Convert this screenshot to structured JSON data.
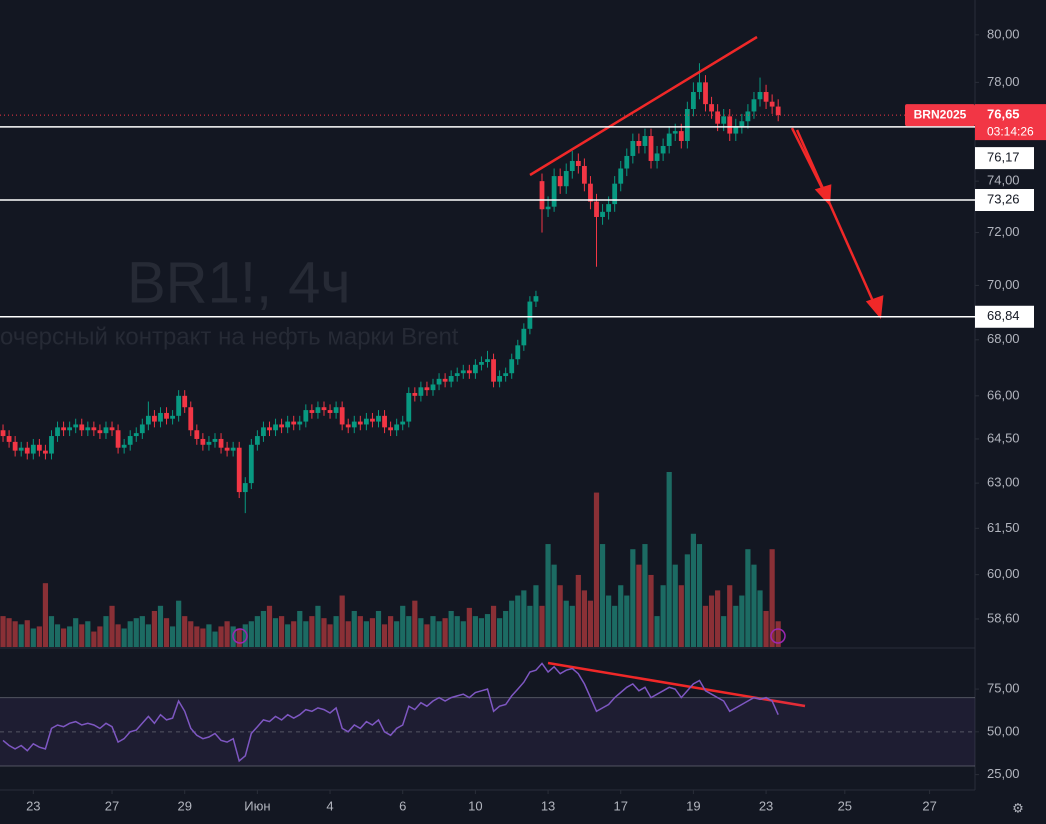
{
  "chart_data": [
    {
      "type": "candlestick",
      "title": "BR1!, 4ч",
      "subtitle": "очерсный контракт на нефть марки Brent",
      "symbol": "BRN2025",
      "last_price": {
        "value": 76.65,
        "label": "76,65"
      },
      "countdown": "03:14:26",
      "up_color": "#089981",
      "down_color": "#f23645",
      "volume_up_color": "#1c6b63",
      "volume_down_color": "#8a3036",
      "log_scale": true,
      "grid": false,
      "xlim": [
        -0.5,
        160.5
      ],
      "xticks": [
        {
          "value": 5,
          "label": "23"
        },
        {
          "value": 18,
          "label": "27"
        },
        {
          "value": 30,
          "label": "29"
        },
        {
          "value": 42,
          "label": "Июн"
        },
        {
          "value": 54,
          "label": "4"
        },
        {
          "value": 66,
          "label": "6"
        },
        {
          "value": 78,
          "label": "10"
        },
        {
          "value": 90,
          "label": "13"
        },
        {
          "value": 102,
          "label": "17"
        },
        {
          "value": 114,
          "label": "19"
        },
        {
          "value": 126,
          "label": "23"
        },
        {
          "value": 139,
          "label": "25"
        },
        {
          "value": 153,
          "label": "27"
        }
      ],
      "ylim": [
        57.7,
        81.5
      ],
      "yticks": [
        {
          "value": 80,
          "label": "80,00"
        },
        {
          "value": 78,
          "label": "78,00"
        },
        {
          "value": 74,
          "label": "74,00"
        },
        {
          "value": 72,
          "label": "72,00"
        },
        {
          "value": 70,
          "label": "70,00"
        },
        {
          "value": 68,
          "label": "68,00"
        },
        {
          "value": 66,
          "label": "66,00"
        },
        {
          "value": 64.5,
          "label": "64,50"
        },
        {
          "value": 63,
          "label": "63,00"
        },
        {
          "value": 61.5,
          "label": "61,50"
        },
        {
          "value": 60,
          "label": "60,00"
        },
        {
          "value": 58.6,
          "label": "58,60"
        }
      ],
      "hlines": [
        {
          "value": 76.17,
          "label": "76,17"
        },
        {
          "value": 73.26,
          "label": "73,26"
        },
        {
          "value": 68.84,
          "label": "68,84"
        }
      ],
      "open": [
        64.8,
        64.6,
        64.4,
        64.1,
        64.2,
        64.0,
        64.3,
        64.1,
        64.0,
        64.6,
        64.9,
        64.8,
        64.9,
        65.0,
        64.8,
        64.9,
        64.8,
        64.7,
        64.9,
        64.8,
        64.2,
        64.3,
        64.6,
        64.7,
        65.0,
        65.3,
        65.1,
        65.4,
        65.2,
        65.3,
        66.0,
        65.6,
        64.8,
        64.5,
        64.3,
        64.4,
        64.5,
        64.2,
        64.1,
        64.2,
        62.7,
        63.0,
        64.3,
        64.6,
        64.9,
        64.8,
        65.0,
        64.9,
        65.1,
        65.0,
        65.1,
        65.5,
        65.4,
        65.6,
        65.5,
        65.4,
        65.6,
        65.0,
        64.9,
        65.1,
        65.0,
        65.2,
        65.1,
        65.3,
        64.9,
        64.8,
        65.0,
        65.1,
        66.1,
        66.0,
        66.3,
        66.2,
        66.4,
        66.6,
        66.5,
        66.7,
        66.8,
        66.9,
        66.8,
        67.1,
        67.2,
        67.3,
        66.5,
        66.7,
        66.8,
        67.3,
        67.8,
        68.4,
        69.4,
        74.0,
        72.9,
        73.0,
        74.2,
        73.8,
        74.4,
        74.8,
        74.6,
        73.9,
        73.2,
        72.6,
        72.8,
        73.1,
        73.9,
        74.5,
        75.0,
        75.6,
        75.4,
        75.8,
        74.8,
        75.1,
        75.4,
        75.9,
        76.0,
        75.6,
        76.9,
        77.6,
        78.0,
        77.1,
        76.8,
        76.3,
        76.6,
        75.9,
        76.2,
        76.4,
        76.8,
        77.3,
        77.6,
        77.2,
        77.0
      ],
      "high": [
        65.0,
        64.8,
        64.6,
        64.4,
        64.4,
        64.5,
        64.5,
        64.3,
        64.8,
        65.1,
        65.1,
        65.1,
        65.2,
        65.2,
        65.1,
        65.1,
        65.0,
        65.1,
        65.1,
        65.0,
        64.5,
        64.8,
        64.9,
        65.2,
        65.8,
        65.5,
        65.6,
        65.6,
        65.5,
        66.2,
        66.2,
        65.8,
        65.0,
        64.7,
        64.6,
        64.7,
        64.7,
        64.4,
        64.4,
        64.4,
        63.2,
        64.5,
        64.8,
        65.1,
        65.1,
        65.2,
        65.2,
        65.3,
        65.3,
        65.3,
        65.7,
        65.7,
        65.8,
        65.8,
        65.7,
        65.8,
        65.8,
        65.2,
        65.3,
        65.3,
        65.4,
        65.4,
        65.5,
        65.5,
        65.1,
        65.2,
        65.3,
        66.3,
        66.3,
        66.5,
        66.5,
        66.6,
        66.8,
        66.8,
        66.9,
        67.0,
        67.1,
        67.1,
        67.3,
        67.4,
        67.6,
        67.5,
        66.9,
        67.0,
        67.5,
        68.0,
        68.6,
        69.6,
        69.8,
        74.3,
        73.4,
        74.5,
        74.5,
        74.7,
        75.2,
        75.1,
        74.9,
        74.2,
        73.5,
        73.1,
        73.4,
        74.2,
        74.8,
        75.3,
        75.9,
        75.9,
        76.1,
        76.1,
        75.4,
        75.7,
        76.2,
        76.3,
        76.3,
        77.2,
        78.0,
        78.8,
        78.3,
        77.4,
        77.1,
        76.9,
        76.9,
        76.5,
        76.7,
        77.1,
        77.6,
        78.2,
        77.9,
        77.5,
        77.3
      ],
      "low": [
        64.4,
        64.2,
        63.9,
        63.9,
        63.8,
        63.8,
        63.9,
        63.8,
        63.8,
        64.4,
        64.6,
        64.6,
        64.7,
        64.6,
        64.6,
        64.6,
        64.5,
        64.5,
        64.6,
        64.0,
        64.0,
        64.1,
        64.4,
        64.5,
        64.8,
        64.9,
        64.9,
        65.0,
        65.0,
        65.1,
        65.4,
        64.6,
        64.3,
        64.1,
        64.1,
        64.2,
        64.0,
        63.9,
        63.9,
        62.5,
        62.0,
        62.8,
        64.1,
        64.4,
        64.6,
        64.6,
        64.7,
        64.7,
        64.8,
        64.8,
        64.9,
        65.2,
        65.2,
        65.3,
        65.2,
        65.2,
        64.8,
        64.7,
        64.7,
        64.8,
        64.8,
        64.9,
        64.9,
        64.7,
        64.6,
        64.6,
        64.8,
        64.9,
        65.8,
        65.8,
        66.0,
        66.0,
        66.2,
        66.3,
        66.3,
        66.5,
        66.6,
        66.6,
        66.6,
        66.9,
        67.0,
        66.3,
        66.3,
        66.5,
        66.6,
        67.1,
        67.6,
        68.2,
        69.2,
        72.0,
        72.6,
        72.8,
        73.5,
        73.5,
        74.1,
        74.3,
        73.6,
        72.9,
        70.7,
        72.3,
        72.5,
        72.8,
        73.6,
        74.2,
        74.7,
        75.1,
        75.1,
        74.5,
        74.5,
        74.8,
        75.1,
        75.6,
        75.3,
        75.3,
        76.6,
        77.3,
        76.8,
        76.5,
        76.0,
        76.0,
        75.6,
        75.6,
        75.9,
        76.1,
        76.5,
        77.0,
        76.9,
        76.7,
        76.4
      ],
      "close": [
        64.6,
        64.4,
        64.1,
        64.2,
        64.0,
        64.3,
        64.1,
        64.0,
        64.6,
        64.9,
        64.8,
        64.9,
        65.0,
        64.8,
        64.9,
        64.8,
        64.7,
        64.9,
        64.8,
        64.2,
        64.3,
        64.6,
        64.7,
        65.0,
        65.3,
        65.1,
        65.4,
        65.2,
        65.3,
        66.0,
        65.6,
        64.8,
        64.5,
        64.3,
        64.4,
        64.5,
        64.2,
        64.1,
        64.2,
        62.7,
        63.0,
        64.3,
        64.6,
        64.9,
        64.8,
        65.0,
        64.9,
        65.1,
        65.0,
        65.1,
        65.5,
        65.4,
        65.6,
        65.5,
        65.4,
        65.6,
        65.0,
        64.9,
        65.1,
        65.0,
        65.2,
        65.1,
        65.3,
        64.9,
        64.8,
        65.0,
        65.1,
        66.1,
        66.0,
        66.3,
        66.2,
        66.4,
        66.6,
        66.5,
        66.7,
        66.8,
        66.9,
        66.8,
        67.1,
        67.2,
        67.3,
        66.5,
        66.7,
        66.8,
        67.3,
        67.8,
        68.4,
        69.4,
        69.6,
        72.9,
        73.0,
        74.2,
        73.8,
        74.4,
        74.8,
        74.6,
        73.9,
        73.2,
        72.6,
        72.8,
        73.1,
        73.9,
        74.5,
        75.0,
        75.6,
        75.4,
        75.8,
        74.8,
        75.1,
        75.4,
        75.9,
        76.0,
        75.6,
        76.9,
        77.6,
        78.0,
        77.1,
        76.8,
        76.3,
        76.6,
        75.9,
        76.2,
        76.4,
        76.8,
        77.3,
        77.6,
        77.2,
        77.0,
        76.65
      ],
      "volume": [
        30,
        28,
        25,
        22,
        26,
        18,
        20,
        62,
        30,
        22,
        18,
        20,
        28,
        22,
        25,
        15,
        20,
        30,
        40,
        22,
        18,
        25,
        28,
        30,
        22,
        35,
        40,
        28,
        20,
        45,
        30,
        25,
        20,
        18,
        22,
        15,
        20,
        25,
        20,
        18,
        22,
        25,
        30,
        35,
        40,
        28,
        30,
        22,
        25,
        35,
        25,
        30,
        40,
        28,
        22,
        30,
        50,
        25,
        35,
        30,
        25,
        28,
        35,
        22,
        30,
        25,
        40,
        30,
        45,
        28,
        22,
        30,
        25,
        28,
        35,
        30,
        25,
        38,
        30,
        28,
        32,
        40,
        28,
        35,
        45,
        50,
        55,
        40,
        60,
        40,
        100,
        80,
        60,
        45,
        40,
        70,
        55,
        45,
        150,
        100,
        50,
        40,
        60,
        50,
        95,
        80,
        100,
        70,
        30,
        60,
        170,
        80,
        60,
        90,
        110,
        100,
        40,
        50,
        55,
        30,
        60,
        40,
        50,
        95,
        80,
        55,
        35,
        95,
        25
      ]
    },
    {
      "type": "line",
      "color": "#7e57c2",
      "band": [
        30,
        70
      ],
      "ylim": [
        16,
        99
      ],
      "yticks": [
        {
          "value": 75,
          "label": "75,00"
        },
        {
          "value": 50,
          "label": "50,00"
        },
        {
          "value": 25,
          "label": "25,00"
        }
      ],
      "values": [
        45,
        42,
        40,
        42,
        39,
        43,
        41,
        40,
        52,
        54,
        53,
        55,
        56,
        54,
        55,
        54,
        52,
        55,
        53,
        44,
        46,
        50,
        51,
        55,
        59,
        55,
        60,
        57,
        58,
        68,
        62,
        52,
        48,
        46,
        47,
        49,
        45,
        44,
        46,
        33,
        36,
        49,
        53,
        57,
        56,
        59,
        57,
        60,
        58,
        60,
        63,
        62,
        64,
        63,
        61,
        64,
        52,
        50,
        54,
        52,
        56,
        54,
        57,
        50,
        48,
        52,
        54,
        65,
        63,
        67,
        65,
        68,
        70,
        68,
        70,
        71,
        72,
        70,
        73,
        74,
        75,
        62,
        65,
        66,
        71,
        75,
        79,
        85,
        86,
        90,
        85,
        88,
        84,
        86,
        87,
        84,
        78,
        70,
        62,
        64,
        66,
        70,
        73,
        76,
        78,
        74,
        76,
        70,
        72,
        74,
        76,
        75,
        70,
        74,
        78,
        80,
        74,
        72,
        70,
        68,
        62,
        64,
        66,
        68,
        70,
        69,
        70,
        68,
        60
      ]
    }
  ]
}
